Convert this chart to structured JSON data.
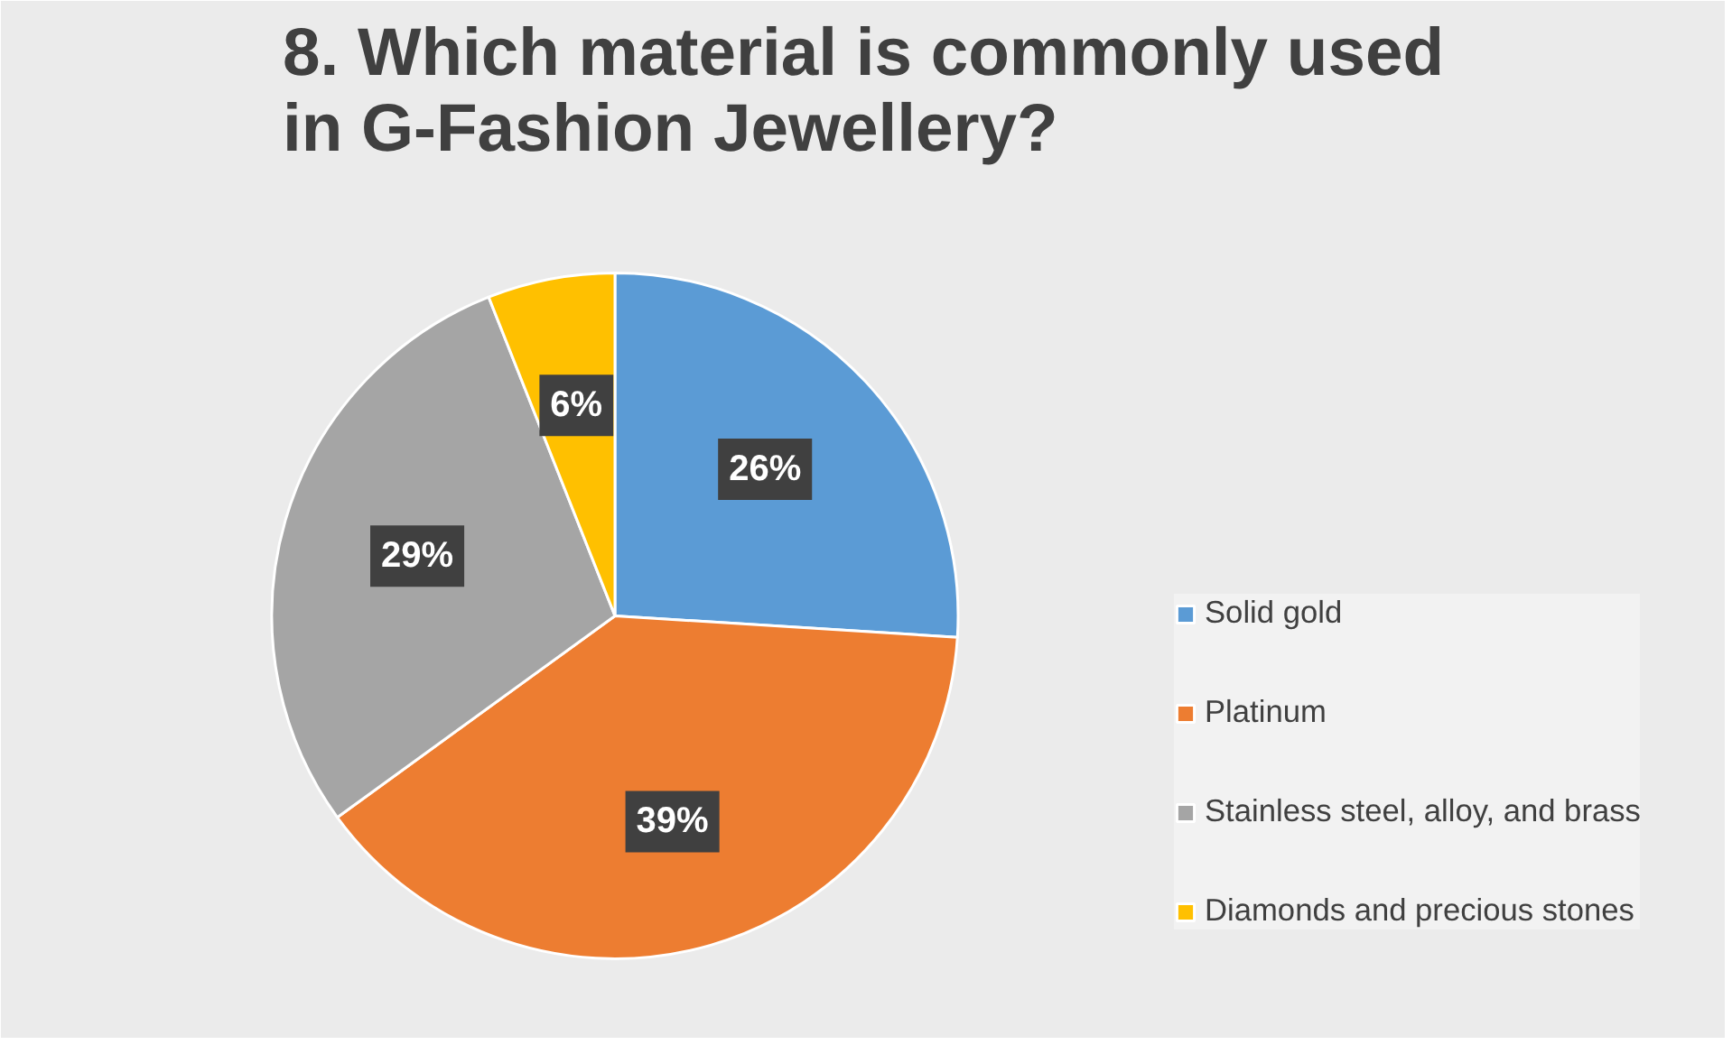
{
  "chart_data": {
    "type": "pie",
    "title": "8. Which material is commonly used in G-Fashion Jewellery?",
    "categories": [
      "Solid gold",
      "Platinum",
      "Stainless steel, alloy, and brass",
      "Diamonds and precious stones"
    ],
    "values": [
      26,
      39,
      29,
      6
    ],
    "colors": [
      "#5b9bd5",
      "#ed7d31",
      "#a5a5a5",
      "#ffc000"
    ],
    "value_labels": [
      "26%",
      "39%",
      "29%",
      "6%"
    ],
    "legend": "right"
  }
}
